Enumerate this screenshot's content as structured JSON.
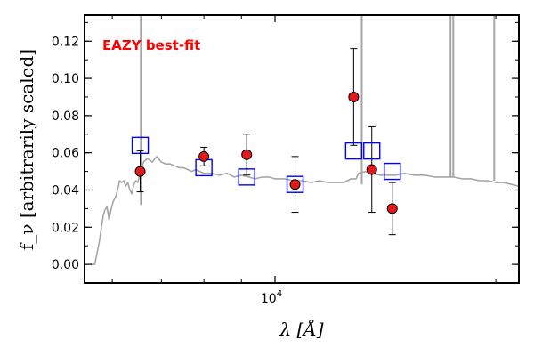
{
  "chart_data": {
    "type": "scatter",
    "x_scale": "log",
    "xlim": [
      5500,
      21500
    ],
    "ylim": [
      -0.01,
      0.134
    ],
    "grid": false,
    "xlabel": "λ [Å]",
    "ylabel": "f_ν [arbitrarily scaled]",
    "x_tick_label": "10^4",
    "x_tick_label_value": 10000,
    "y_ticks": [
      0.0,
      0.02,
      0.04,
      0.06,
      0.08,
      0.1,
      0.12
    ],
    "y_tick_labels": [
      "0.00",
      "0.02",
      "0.04",
      "0.06",
      "0.08",
      "0.10",
      "0.12"
    ],
    "x_minor_ticks": [
      6000,
      7000,
      8000,
      9000,
      20000
    ],
    "annotation": "EAZY best-fit",
    "colors": {
      "template": "#a6a6a6",
      "observed_fill": "#e31a1c",
      "model_box": "#0000ff",
      "annotation": "#ff0000"
    },
    "series": [
      {
        "kind": "template-line",
        "x": [
          5600,
          5680,
          5720,
          5760,
          5800,
          5830,
          5860,
          5900,
          5940,
          5980,
          6020,
          6060,
          6100,
          6140,
          6180,
          6220,
          6260,
          6300,
          6340,
          6380,
          6420,
          6460,
          6500,
          6560,
          6620,
          6700,
          6800,
          6900,
          7000,
          7100,
          7200,
          7300,
          7400,
          7500,
          7600,
          7700,
          7800,
          7900,
          8000,
          8200,
          8400,
          8600,
          8800,
          9000,
          9200,
          9400,
          9600,
          9800,
          10000,
          10300,
          10600,
          10900,
          11200,
          11500,
          11800,
          12100,
          12400,
          12700,
          12900,
          13000,
          13300,
          13600,
          13900,
          14200,
          14600,
          15000,
          15500,
          16000,
          16500,
          17000,
          17500,
          18000,
          18500,
          19000,
          19500,
          20000,
          20500,
          21000,
          21500
        ],
        "y": [
          0.0,
          0.0,
          0.006,
          0.012,
          0.02,
          0.026,
          0.029,
          0.031,
          0.024,
          0.03,
          0.034,
          0.036,
          0.04,
          0.045,
          0.044,
          0.045,
          0.042,
          0.044,
          0.04,
          0.038,
          0.043,
          0.045,
          0.044,
          0.05,
          0.055,
          0.057,
          0.055,
          0.058,
          0.055,
          0.054,
          0.054,
          0.053,
          0.052,
          0.052,
          0.051,
          0.05,
          0.051,
          0.05,
          0.049,
          0.049,
          0.048,
          0.049,
          0.047,
          0.048,
          0.047,
          0.046,
          0.047,
          0.047,
          0.046,
          0.046,
          0.045,
          0.045,
          0.044,
          0.045,
          0.044,
          0.044,
          0.044,
          0.046,
          0.046,
          0.049,
          0.05,
          0.049,
          0.048,
          0.048,
          0.048,
          0.049,
          0.048,
          0.048,
          0.047,
          0.047,
          0.047,
          0.046,
          0.046,
          0.045,
          0.045,
          0.044,
          0.044,
          0.043,
          0.042
        ]
      },
      {
        "kind": "template-emission-lines",
        "x": [
          6563,
          13130,
          17350,
          17500,
          19900
        ],
        "y_top": [
          0.134,
          0.134,
          0.134,
          0.134,
          0.134
        ],
        "y_base": [
          0.032,
          0.043,
          0.047,
          0.047,
          0.045
        ]
      },
      {
        "kind": "model-photometry",
        "x": [
          6550,
          8000,
          9150,
          10650,
          12800,
          13550,
          14450
        ],
        "y": [
          0.064,
          0.052,
          0.047,
          0.043,
          0.061,
          0.061,
          0.05
        ]
      },
      {
        "kind": "observed-photometry",
        "x": [
          6550,
          8000,
          9150,
          10650,
          12800,
          13550,
          14450
        ],
        "y": [
          0.05,
          0.058,
          0.059,
          0.043,
          0.09,
          0.051,
          0.03
        ],
        "yerr": [
          0.011,
          0.005,
          0.011,
          0.015,
          0.026,
          0.023,
          0.014
        ]
      }
    ]
  }
}
